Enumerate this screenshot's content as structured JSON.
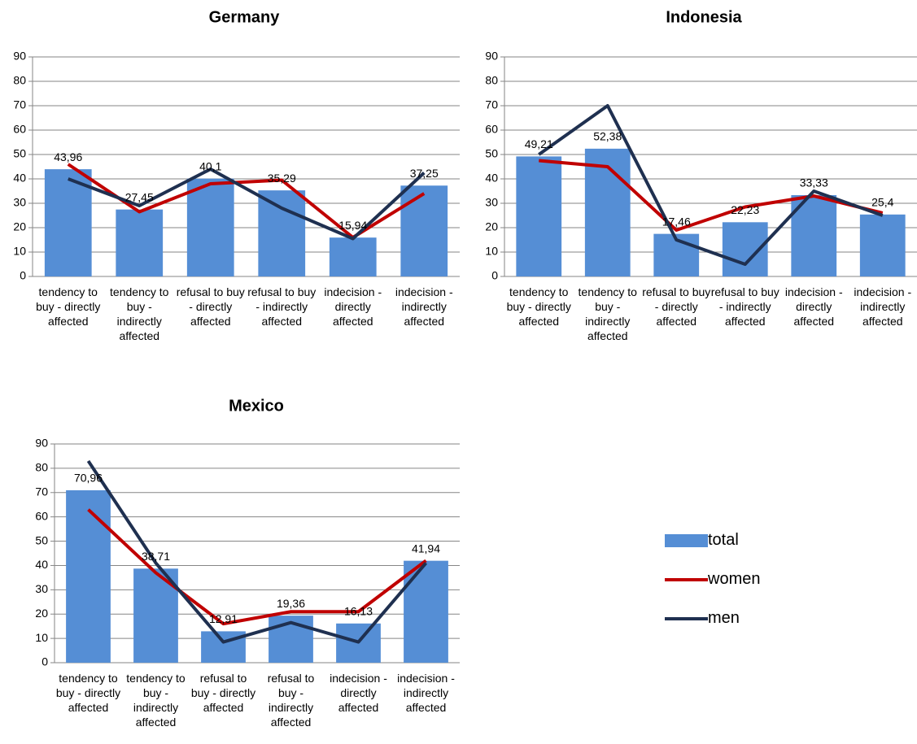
{
  "chart_data": [
    {
      "type": "bar_line",
      "title": "Germany",
      "categories": [
        "tendency to buy - directly affected",
        "tendency to buy - indirectly affected",
        "refusal to buy - directly affected",
        "refusal to buy - indirectly affected",
        "indecision - directly affected",
        "indecision - indirectly affected"
      ],
      "series": [
        {
          "name": "total",
          "type": "bar",
          "color": "#558ed5",
          "values": [
            43.96,
            27.45,
            40.1,
            35.29,
            15.94,
            37.25
          ],
          "value_labels": [
            "43,96",
            "27,45",
            "40,1",
            "35,29",
            "15,94",
            "37,25"
          ]
        },
        {
          "name": "women",
          "type": "line",
          "color": "#c00000",
          "values": [
            46,
            26.5,
            38,
            39.5,
            16,
            34
          ]
        },
        {
          "name": "men",
          "type": "line",
          "color": "#1f3050",
          "values": [
            40,
            29,
            44,
            28,
            15.5,
            42.5
          ]
        }
      ],
      "ylim": [
        0,
        90
      ],
      "yticks": [
        0,
        10,
        20,
        30,
        40,
        50,
        60,
        70,
        80,
        90
      ],
      "grid": true
    },
    {
      "type": "bar_line",
      "title": "Indonesia",
      "categories": [
        "tendency to buy - directly affected",
        "tendency to buy - indirectly affected",
        "refusal to buy - directly affected",
        "refusal to buy - indirectly affected",
        "indecision - directly affected",
        "indecision - indirectly affected"
      ],
      "series": [
        {
          "name": "total",
          "type": "bar",
          "color": "#558ed5",
          "values": [
            49.21,
            52.38,
            17.46,
            22.23,
            33.33,
            25.4
          ],
          "value_labels": [
            "49,21",
            "52,38",
            "17,46",
            "22,23",
            "33,33",
            "25,4"
          ]
        },
        {
          "name": "women",
          "type": "line",
          "color": "#c00000",
          "values": [
            47.5,
            45,
            19,
            28.5,
            33,
            26
          ]
        },
        {
          "name": "men",
          "type": "line",
          "color": "#1f3050",
          "values": [
            50,
            70,
            15,
            5,
            35,
            25
          ]
        }
      ],
      "ylim": [
        0,
        90
      ],
      "yticks": [
        0,
        10,
        20,
        30,
        40,
        50,
        60,
        70,
        80,
        90
      ],
      "grid": true
    },
    {
      "type": "bar_line",
      "title": "Mexico",
      "categories": [
        "tendency to buy - directly affected",
        "tendency to buy - indirectly affected",
        "refusal to buy - directly affected",
        "refusal to buy - indirectly affected",
        "indecision - directly affected",
        "indecision - indirectly affected"
      ],
      "series": [
        {
          "name": "total",
          "type": "bar",
          "color": "#558ed5",
          "values": [
            70.96,
            38.71,
            12.91,
            19.36,
            16.13,
            41.94
          ],
          "value_labels": [
            "70,96",
            "38,71",
            "12,91",
            "19,36",
            "16,13",
            "41,94"
          ]
        },
        {
          "name": "women",
          "type": "line",
          "color": "#c00000",
          "values": [
            63,
            37,
            16,
            21,
            21,
            42
          ]
        },
        {
          "name": "men",
          "type": "line",
          "color": "#1f3050",
          "values": [
            83,
            41,
            8.5,
            16.5,
            8.5,
            41
          ]
        }
      ],
      "ylim": [
        0,
        90
      ],
      "yticks": [
        0,
        10,
        20,
        30,
        40,
        50,
        60,
        70,
        80,
        90
      ],
      "grid": true
    }
  ]
}
